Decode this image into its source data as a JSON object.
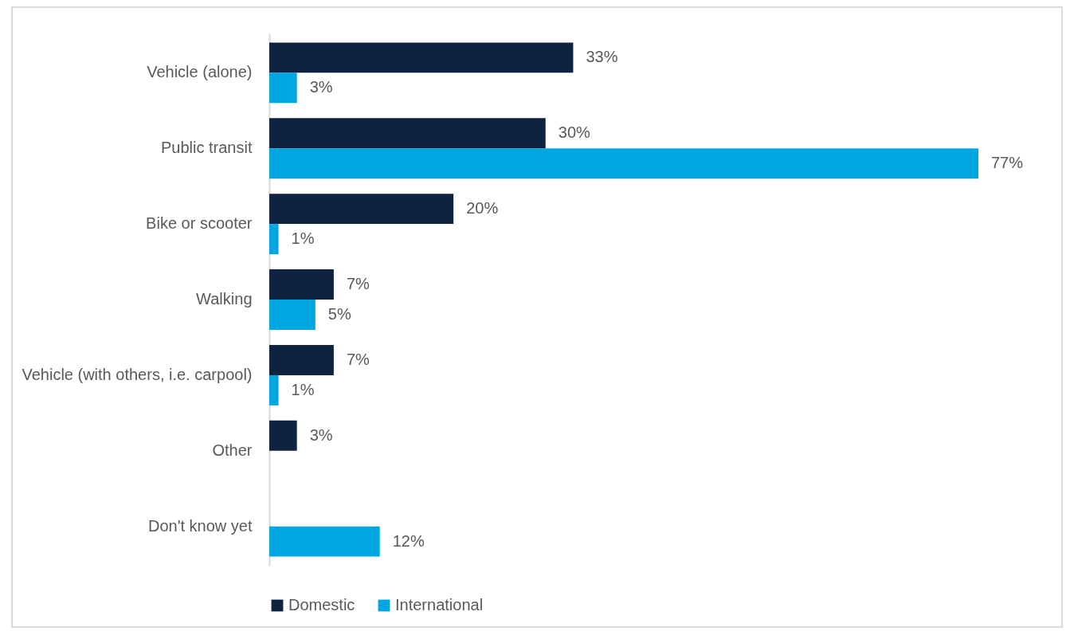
{
  "chart_data": {
    "type": "bar",
    "orientation": "horizontal",
    "legend": "bottom",
    "categories": [
      "Vehicle (alone)",
      "Public transit",
      "Bike or scooter",
      "Walking",
      "Vehicle (with others, i.e. carpool)",
      "Other",
      "Don't know yet"
    ],
    "series": [
      {
        "name": "Domestic",
        "color": "#0f2240",
        "values": [
          33,
          30,
          20,
          7,
          7,
          3,
          null
        ],
        "value_labels": [
          "33%",
          "30%",
          "20%",
          "7%",
          "7%",
          "3%",
          null
        ]
      },
      {
        "name": "International",
        "color": "#00a6e0",
        "values": [
          3,
          77,
          1,
          5,
          1,
          null,
          12
        ],
        "value_labels": [
          "3%",
          "77%",
          "1%",
          "5%",
          "1%",
          null,
          "12%"
        ]
      }
    ]
  }
}
